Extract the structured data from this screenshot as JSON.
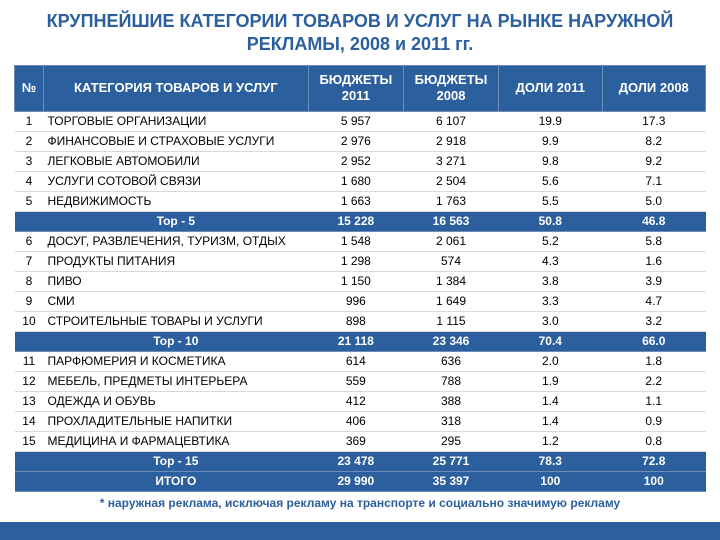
{
  "title": "КРУПНЕЙШИЕ КАТЕГОРИИ ТОВАРОВ И УСЛУГ НА РЫНКЕ НАРУЖНОЙ РЕКЛАМЫ, 2008 и 2011 гг.",
  "columns": {
    "num": "№",
    "category": "КАТЕГОРИЯ ТОВАРОВ И УСЛУГ",
    "budget_2011": "БЮДЖЕТЫ 2011",
    "budget_2008": "БЮДЖЕТЫ 2008",
    "share_2011": "ДОЛИ 2011",
    "share_2008": "ДОЛИ 2008"
  },
  "rows": [
    {
      "type": "data",
      "num": "1",
      "cat": "ТОРГОВЫЕ ОРГАНИЗАЦИИ",
      "b11": "5 957",
      "b08": "6 107",
      "s11": "19.9",
      "s08": "17.3"
    },
    {
      "type": "data",
      "num": "2",
      "cat": "ФИНАНСОВЫЕ И СТРАХОВЫЕ УСЛУГИ",
      "b11": "2 976",
      "b08": "2 918",
      "s11": "9.9",
      "s08": "8.2"
    },
    {
      "type": "data",
      "num": "3",
      "cat": "ЛЕГКОВЫЕ АВТОМОБИЛИ",
      "b11": "2 952",
      "b08": "3 271",
      "s11": "9.8",
      "s08": "9.2"
    },
    {
      "type": "data",
      "num": "4",
      "cat": "УСЛУГИ СОТОВОЙ СВЯЗИ",
      "b11": "1 680",
      "b08": "2 504",
      "s11": "5.6",
      "s08": "7.1"
    },
    {
      "type": "data",
      "num": "5",
      "cat": "НЕДВИЖИМОСТЬ",
      "b11": "1 663",
      "b08": "1 763",
      "s11": "5.5",
      "s08": "5.0"
    },
    {
      "type": "sub",
      "cat": "Top - 5",
      "b11": "15 228",
      "b08": "16 563",
      "s11": "50.8",
      "s08": "46.8"
    },
    {
      "type": "data",
      "num": "6",
      "cat": "ДОСУГ, РАЗВЛЕЧЕНИЯ, ТУРИЗМ, ОТДЫХ",
      "b11": "1 548",
      "b08": "2 061",
      "s11": "5.2",
      "s08": "5.8"
    },
    {
      "type": "data",
      "num": "7",
      "cat": "ПРОДУКТЫ ПИТАНИЯ",
      "b11": "1 298",
      "b08": "574",
      "s11": "4.3",
      "s08": "1.6"
    },
    {
      "type": "data",
      "num": "8",
      "cat": "ПИВО",
      "b11": "1 150",
      "b08": "1 384",
      "s11": "3.8",
      "s08": "3.9"
    },
    {
      "type": "data",
      "num": "9",
      "cat": "СМИ",
      "b11": "996",
      "b08": "1 649",
      "s11": "3.3",
      "s08": "4.7"
    },
    {
      "type": "data",
      "num": "10",
      "cat": "СТРОИТЕЛЬНЫЕ ТОВАРЫ И УСЛУГИ",
      "b11": "898",
      "b08": "1 115",
      "s11": "3.0",
      "s08": "3.2"
    },
    {
      "type": "sub",
      "cat": "Top - 10",
      "b11": "21 118",
      "b08": "23 346",
      "s11": "70.4",
      "s08": "66.0"
    },
    {
      "type": "data",
      "num": "11",
      "cat": "ПАРФЮМЕРИЯ И КОСМЕТИКА",
      "b11": "614",
      "b08": "636",
      "s11": "2.0",
      "s08": "1.8"
    },
    {
      "type": "data",
      "num": "12",
      "cat": "МЕБЕЛЬ, ПРЕДМЕТЫ ИНТЕРЬЕРА",
      "b11": "559",
      "b08": "788",
      "s11": "1.9",
      "s08": "2.2"
    },
    {
      "type": "data",
      "num": "13",
      "cat": "ОДЕЖДА И ОБУВЬ",
      "b11": "412",
      "b08": "388",
      "s11": "1.4",
      "s08": "1.1"
    },
    {
      "type": "data",
      "num": "14",
      "cat": "ПРОХЛАДИТЕЛЬНЫЕ НАПИТКИ",
      "b11": "406",
      "b08": "318",
      "s11": "1.4",
      "s08": "0.9"
    },
    {
      "type": "data",
      "num": "15",
      "cat": "МЕДИЦИНА И ФАРМАЦЕВТИКА",
      "b11": "369",
      "b08": "295",
      "s11": "1.2",
      "s08": "0.8"
    },
    {
      "type": "sub",
      "cat": "Top - 15",
      "b11": "23 478",
      "b08": "25 771",
      "s11": "78.3",
      "s08": "72.8"
    },
    {
      "type": "sub",
      "cat": "ИТОГО",
      "b11": "29 990",
      "b08": "35 397",
      "s11": "100",
      "s08": "100"
    }
  ],
  "footnote": "* наружная реклама, исключая рекламу на транспорте и социально значимую рекламу",
  "colors": {
    "header_bg": "#2b5f9e",
    "header_fg": "#ffffff",
    "grid": "#d9d9d9"
  },
  "typography": {
    "title_fontsize": 18,
    "body_fontsize": 12
  }
}
